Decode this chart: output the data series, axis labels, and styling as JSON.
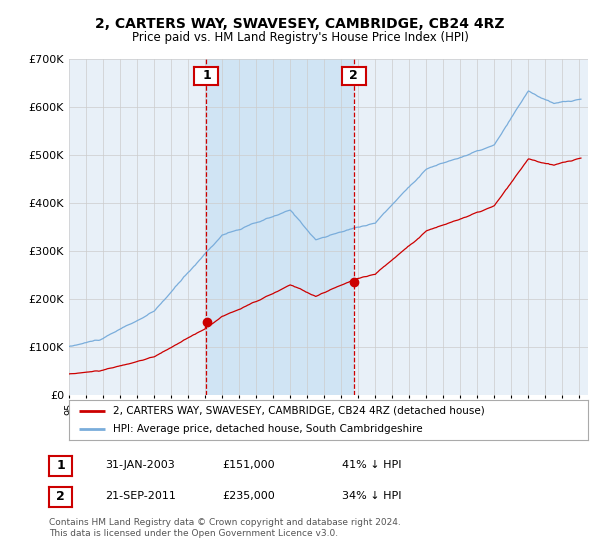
{
  "title": "2, CARTERS WAY, SWAVESEY, CAMBRIDGE, CB24 4RZ",
  "subtitle": "Price paid vs. HM Land Registry's House Price Index (HPI)",
  "x_start_year": 1995,
  "x_end_year": 2025,
  "y_min": 0,
  "y_max": 700000,
  "y_ticks": [
    0,
    100000,
    200000,
    300000,
    400000,
    500000,
    600000,
    700000
  ],
  "y_tick_labels": [
    "£0",
    "£100K",
    "£200K",
    "£300K",
    "£400K",
    "£500K",
    "£600K",
    "£700K"
  ],
  "sale1_date": 2003.08,
  "sale1_label": "1",
  "sale1_price": 151000,
  "sale1_text": "31-JAN-2003",
  "sale1_hpi": "41% ↓ HPI",
  "sale2_date": 2011.72,
  "sale2_label": "2",
  "sale2_price": 235000,
  "sale2_text": "21-SEP-2011",
  "sale2_hpi": "34% ↓ HPI",
  "red_line_color": "#cc0000",
  "blue_line_color": "#7aaddb",
  "vline_color": "#cc0000",
  "grid_color": "#cccccc",
  "plot_bg_color": "#e8f0f8",
  "shade_between_color": "#d0e4f4",
  "legend_label_red": "2, CARTERS WAY, SWAVESEY, CAMBRIDGE, CB24 4RZ (detached house)",
  "legend_label_blue": "HPI: Average price, detached house, South Cambridgeshire",
  "footer": "Contains HM Land Registry data © Crown copyright and database right 2024.\nThis data is licensed under the Open Government Licence v3.0."
}
